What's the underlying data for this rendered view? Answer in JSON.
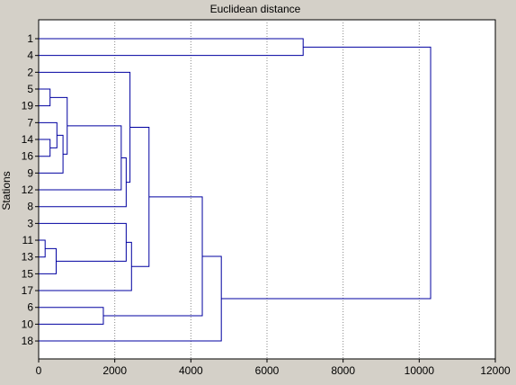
{
  "chart_data": {
    "type": "dendrogram",
    "title": "Euclidean distance",
    "xlabel": "",
    "ylabel": "Stations",
    "xlim": [
      0,
      12000
    ],
    "xticks": [
      0,
      2000,
      4000,
      6000,
      8000,
      10000,
      12000
    ],
    "grid": true,
    "leaf_order": [
      "1",
      "4",
      "2",
      "5",
      "19",
      "7",
      "14",
      "16",
      "9",
      "12",
      "8",
      "3",
      "11",
      "13",
      "15",
      "17",
      "6",
      "10",
      "18"
    ],
    "merges": [
      {
        "id": "m1",
        "children": [
          "5",
          "19"
        ],
        "height": 300
      },
      {
        "id": "m2",
        "children": [
          "14",
          "16"
        ],
        "height": 300
      },
      {
        "id": "m3",
        "children": [
          "7",
          "m2"
        ],
        "height": 480
      },
      {
        "id": "m4",
        "children": [
          "m3",
          "9"
        ],
        "height": 640
      },
      {
        "id": "m5",
        "children": [
          "m1",
          "m4"
        ],
        "height": 750
      },
      {
        "id": "m6",
        "children": [
          "m5",
          "12"
        ],
        "height": 2170
      },
      {
        "id": "m7",
        "children": [
          "m6",
          "8"
        ],
        "height": 2300
      },
      {
        "id": "m8",
        "children": [
          "2",
          "m7"
        ],
        "height": 2400
      },
      {
        "id": "m9",
        "children": [
          "11",
          "13"
        ],
        "height": 170
      },
      {
        "id": "m10",
        "children": [
          "m9",
          "15"
        ],
        "height": 460
      },
      {
        "id": "m11",
        "children": [
          "3",
          "m10"
        ],
        "height": 2300
      },
      {
        "id": "m12",
        "children": [
          "m11",
          "17"
        ],
        "height": 2440
      },
      {
        "id": "m13",
        "children": [
          "m8",
          "m12"
        ],
        "height": 2900
      },
      {
        "id": "m14",
        "children": [
          "6",
          "10"
        ],
        "height": 1700
      },
      {
        "id": "m15",
        "children": [
          "m13",
          "m14"
        ],
        "height": 4300
      },
      {
        "id": "m16",
        "children": [
          "m15",
          "18"
        ],
        "height": 4800
      },
      {
        "id": "m17",
        "children": [
          "1",
          "4"
        ],
        "height": 6950
      },
      {
        "id": "m18",
        "children": [
          "m17",
          "m16"
        ],
        "height": 10300
      }
    ]
  }
}
